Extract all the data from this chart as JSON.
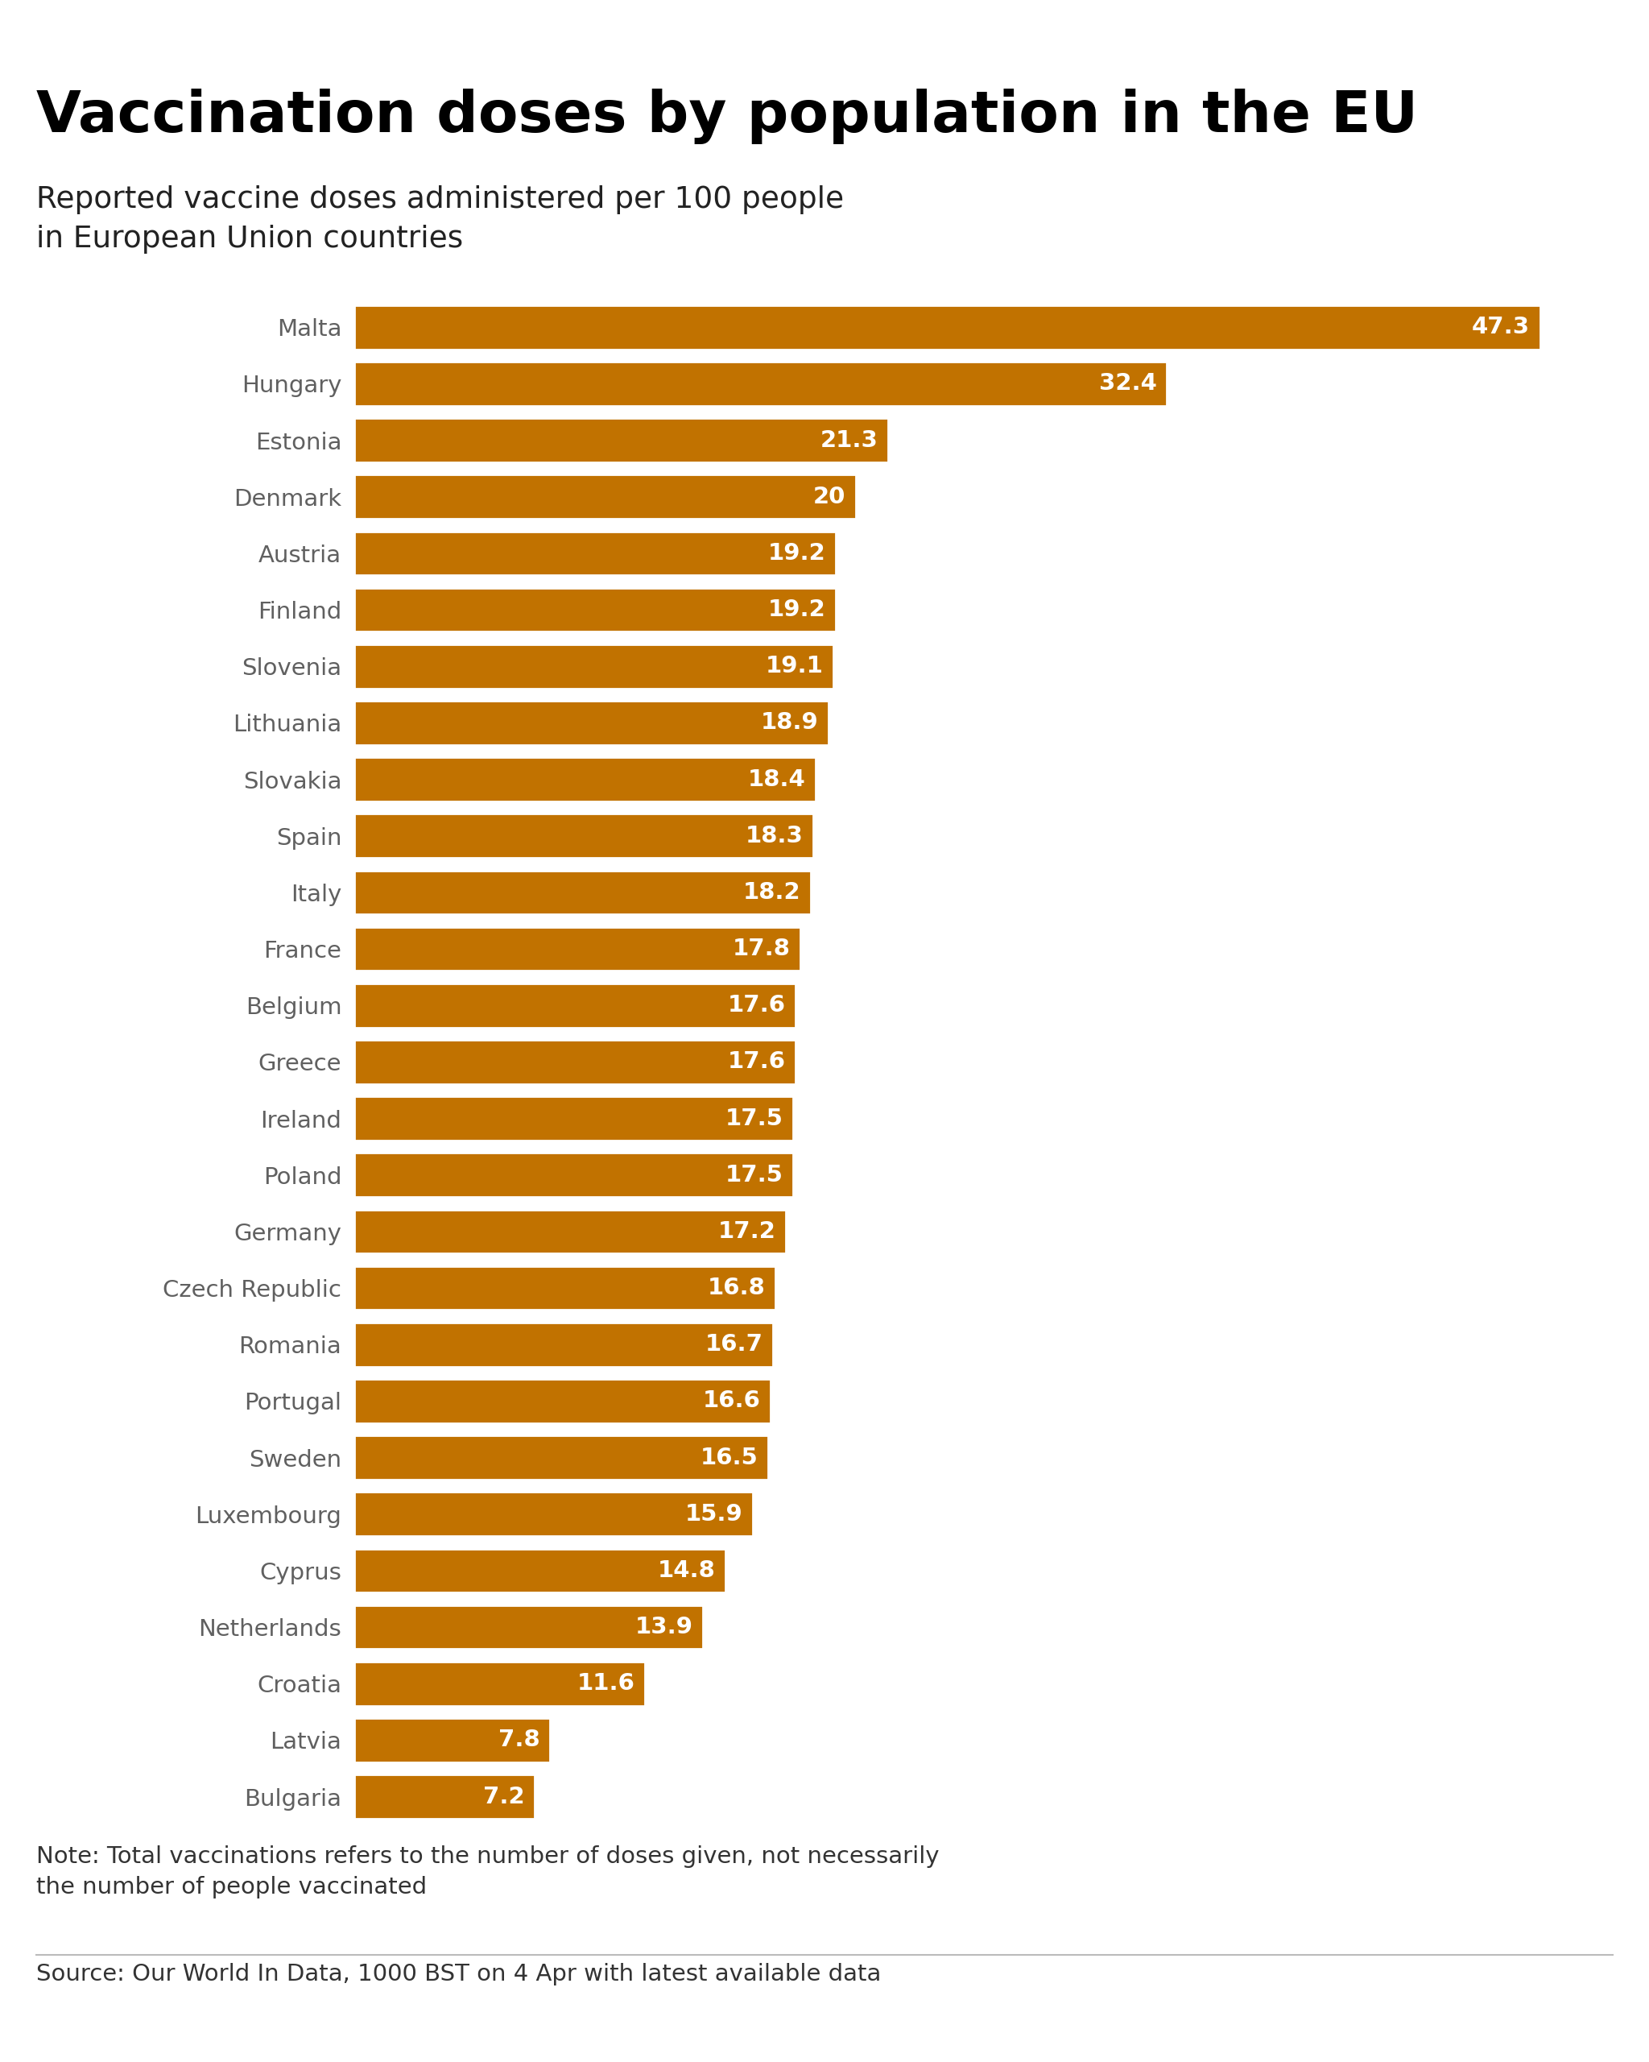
{
  "title": "Vaccination doses by population in the EU",
  "subtitle": "Reported vaccine doses administered per 100 people\nin European Union countries",
  "note": "Note: Total vaccinations refers to the number of doses given, not necessarily\nthe number of people vaccinated",
  "source": "Source: Our World In Data, 1000 BST on 4 Apr with latest available data",
  "countries": [
    "Malta",
    "Hungary",
    "Estonia",
    "Denmark",
    "Austria",
    "Finland",
    "Slovenia",
    "Lithuania",
    "Slovakia",
    "Spain",
    "Italy",
    "France",
    "Belgium",
    "Greece",
    "Ireland",
    "Poland",
    "Germany",
    "Czech Republic",
    "Romania",
    "Portugal",
    "Sweden",
    "Luxembourg",
    "Cyprus",
    "Netherlands",
    "Croatia",
    "Latvia",
    "Bulgaria"
  ],
  "values": [
    47.3,
    32.4,
    21.3,
    20.0,
    19.2,
    19.2,
    19.1,
    18.9,
    18.4,
    18.3,
    18.2,
    17.8,
    17.6,
    17.6,
    17.5,
    17.5,
    17.2,
    16.8,
    16.7,
    16.6,
    16.5,
    15.9,
    14.8,
    13.9,
    11.6,
    7.8,
    7.2
  ],
  "bar_color": "#C17200",
  "label_color": "#FFFFFF",
  "country_label_color": "#606060",
  "title_color": "#000000",
  "subtitle_color": "#222222",
  "note_color": "#333333",
  "source_color": "#333333",
  "background_color": "#FFFFFF",
  "xlim": [
    0,
    50
  ],
  "bar_height": 0.78,
  "label_fontsize": 21,
  "country_fontsize": 21,
  "title_fontsize": 52,
  "subtitle_fontsize": 27,
  "note_fontsize": 21,
  "source_fontsize": 21,
  "bbc_box_color": "#000000",
  "bbc_text_color": "#FFFFFF"
}
